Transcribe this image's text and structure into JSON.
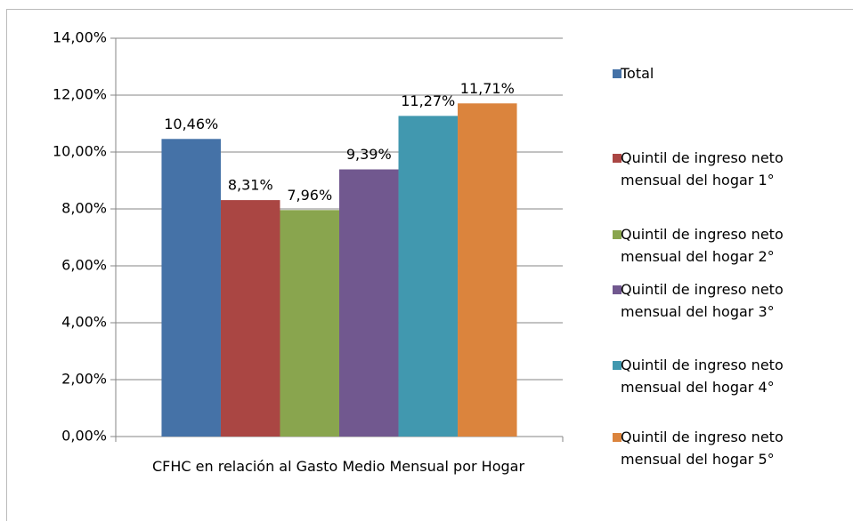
{
  "chart_data": {
    "type": "bar",
    "categories": [
      "CFHC en relación al Gasto Medio Mensual por Hogar"
    ],
    "series": [
      {
        "name": "Total",
        "color": "#4572a7",
        "values": [
          10.46
        ],
        "value_labels": [
          "10,46%"
        ]
      },
      {
        "name": "Quintil de ingreso neto mensual del hogar 1°",
        "color": "#aa4643",
        "values": [
          8.31
        ],
        "value_labels": [
          "8,31%"
        ]
      },
      {
        "name": "Quintil de ingreso neto mensual del hogar 2°",
        "color": "#89a54e",
        "values": [
          7.96
        ],
        "value_labels": [
          "7,96%"
        ]
      },
      {
        "name": "Quintil de ingreso neto mensual del hogar 3°",
        "color": "#71588f",
        "values": [
          9.39
        ],
        "value_labels": [
          "9,39%"
        ]
      },
      {
        "name": "Quintil de ingreso neto mensual del hogar 4°",
        "color": "#4198af",
        "values": [
          11.27
        ],
        "value_labels": [
          "11,27%"
        ]
      },
      {
        "name": "Quintil de ingreso neto mensual del hogar 5°",
        "color": "#db843d",
        "values": [
          11.71
        ],
        "value_labels": [
          "11,71%"
        ]
      }
    ],
    "ylim": [
      0,
      14
    ],
    "yticks": [
      {
        "value": 0,
        "label": "0,00%"
      },
      {
        "value": 2,
        "label": "2,00%"
      },
      {
        "value": 4,
        "label": "4,00%"
      },
      {
        "value": 6,
        "label": "6,00%"
      },
      {
        "value": 8,
        "label": "8,00%"
      },
      {
        "value": 10,
        "label": "10,00%"
      },
      {
        "value": 12,
        "label": "12,00%"
      },
      {
        "value": 14,
        "label": "14,00%"
      }
    ],
    "grid": true,
    "legend": "right"
  }
}
